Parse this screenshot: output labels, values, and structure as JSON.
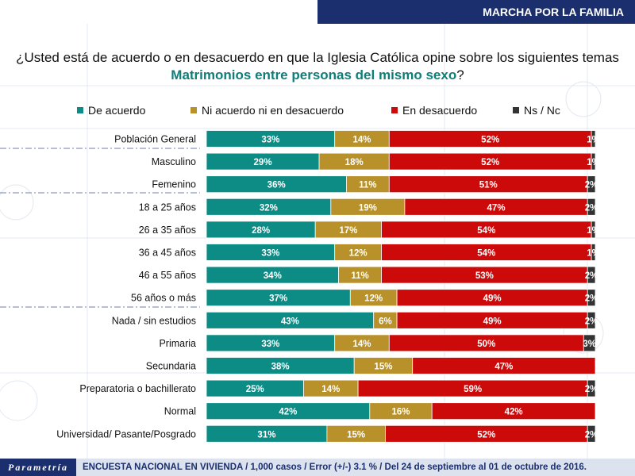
{
  "header": {
    "title": "MARCHA POR LA FAMILIA"
  },
  "question": {
    "line1": "¿Usted está de acuerdo o en desacuerdo en que la Iglesia Católica opine sobre los siguientes temas",
    "topic": "Matrimonios entre personas del mismo sexo",
    "suffix": "?"
  },
  "footer": {
    "brand": "Parametría",
    "text": "ENCUESTA NACIONAL EN VIVIENDA / 1,000 casos / Error (+/-) 3.1 % / Del 24 de septiembre al 01 de octubre de 2016."
  },
  "colors": {
    "de_acuerdo": "#0d8c86",
    "ni_acuerdo": "#b8912a",
    "desacuerdo": "#cc0a0a",
    "ns_nc": "#333333",
    "header_bg": "#1b2f6e"
  },
  "chart_data": {
    "type": "bar",
    "orientation": "horizontal",
    "stacked": true,
    "unit": "%",
    "categories": [
      "Población General",
      "Masculino",
      "Femenino",
      "18 a 25 años",
      "26 a 35 años",
      "36 a 45 años",
      "46 a 55 años",
      "56 años o más",
      "Nada / sin estudios",
      "Primaria",
      "Secundaria",
      "Preparatoria o bachillerato",
      "Normal",
      "Universidad/ Pasante/Posgrado"
    ],
    "series": [
      {
        "name": "De acuerdo",
        "color": "#0d8c86",
        "values": [
          33,
          29,
          36,
          32,
          28,
          33,
          34,
          37,
          43,
          33,
          38,
          25,
          42,
          31
        ]
      },
      {
        "name": "Ni acuerdo ni en desacuerdo",
        "color": "#b8912a",
        "values": [
          14,
          18,
          11,
          19,
          17,
          12,
          11,
          12,
          6,
          14,
          15,
          14,
          16,
          15
        ]
      },
      {
        "name": "En desacuerdo",
        "color": "#cc0a0a",
        "values": [
          52,
          52,
          51,
          47,
          54,
          54,
          53,
          49,
          49,
          50,
          47,
          59,
          42,
          52
        ]
      },
      {
        "name": "Ns / Nc",
        "color": "#333333",
        "values": [
          1,
          1,
          2,
          2,
          1,
          1,
          2,
          2,
          2,
          3,
          0,
          2,
          0,
          2
        ]
      }
    ],
    "labels": [
      [
        "33%",
        "14%",
        "52%",
        "1%"
      ],
      [
        "29%",
        "18%",
        "52%",
        "1%"
      ],
      [
        "36%",
        "11%",
        "51%",
        "2%"
      ],
      [
        "32%",
        "19%",
        "47%",
        "2%"
      ],
      [
        "28%",
        "17%",
        "54%",
        "1%"
      ],
      [
        "33%",
        "12%",
        "54%",
        "1%"
      ],
      [
        "34%",
        "11%",
        "53%",
        "2%"
      ],
      [
        "37%",
        "12%",
        "49%",
        "2%"
      ],
      [
        "43%",
        "6%",
        "49%",
        "2%"
      ],
      [
        "33%",
        "14%",
        "50%",
        "3%"
      ],
      [
        "38%",
        "15%",
        "47%",
        ""
      ],
      [
        "25%",
        "14%",
        "59%",
        "2%"
      ],
      [
        "42%",
        "16%",
        "42%",
        ""
      ],
      [
        "31%",
        "15%",
        "52%",
        "2%"
      ]
    ],
    "legend_position": "top"
  }
}
